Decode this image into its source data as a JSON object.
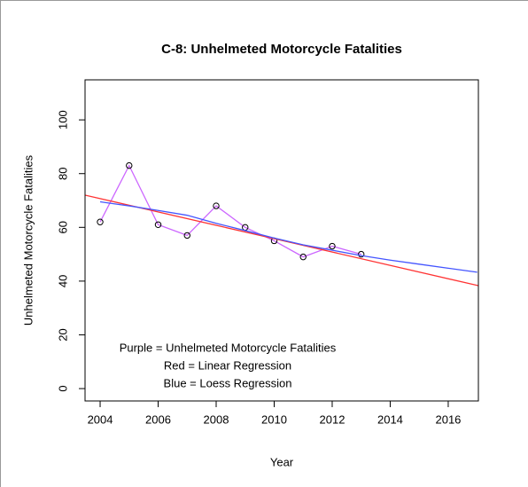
{
  "chart_data": {
    "type": "line",
    "title": "C-8: Unhelmeted Motorcycle Fatalities",
    "xlabel": "Year",
    "ylabel": "Unhelmeted Motorcycle Fatalities",
    "xlim": [
      2003.48,
      2017.04
    ],
    "ylim": [
      -4.6,
      114.9
    ],
    "xticks": [
      2004,
      2006,
      2008,
      2010,
      2012,
      2014,
      2016
    ],
    "yticks": [
      0,
      20,
      40,
      60,
      80,
      100
    ],
    "annotations": [
      "Purple = Unhelmeted Motorcycle Fatalities",
      "Red = Linear Regression",
      "Blue = Loess Regression"
    ],
    "series": [
      {
        "color": "#cc66ff",
        "marker": "circle",
        "x": [
          2004,
          2005,
          2006,
          2007,
          2008,
          2009,
          2010,
          2011,
          2012,
          2013
        ],
        "values": [
          62,
          83,
          61,
          57,
          68,
          60,
          55,
          49,
          53,
          50
        ]
      },
      {
        "color": "#ff3333",
        "x": [
          2003.48,
          2017.04
        ],
        "values": [
          72,
          38.3
        ]
      },
      {
        "color": "#4455ff",
        "x": [
          2004,
          2005,
          2006,
          2007,
          2008,
          2009,
          2010,
          2011,
          2012,
          2013,
          2014,
          2015,
          2016,
          2017
        ],
        "values": [
          69.5,
          68,
          66.3,
          64.5,
          61.5,
          58.8,
          56,
          53.5,
          51.5,
          49.5,
          47.8,
          46.3,
          44.8,
          43.3
        ]
      }
    ]
  }
}
